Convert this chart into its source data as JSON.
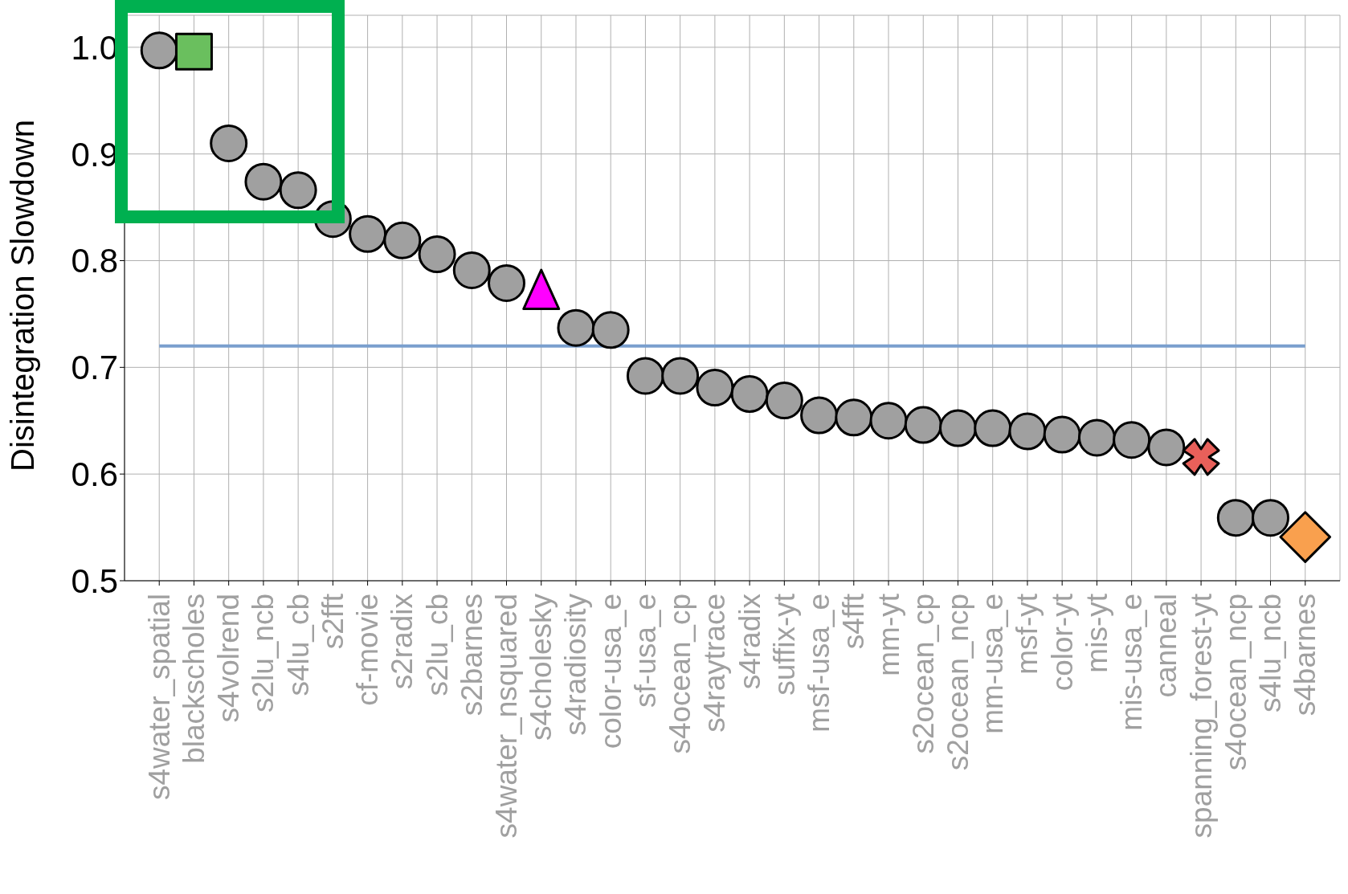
{
  "chart_data": {
    "type": "scatter",
    "ylabel": "Disintegration Slowdown",
    "categories": [
      "s4water_spatial",
      "blackscholes",
      "s4volrend",
      "s2lu_ncb",
      "s4lu_cb",
      "s2fft",
      "cf-movie",
      "s2radix",
      "s2lu_cb",
      "s2barnes",
      "s4water_nsquared",
      "s4cholesky",
      "s4radiosity",
      "color-usa_e",
      "sf-usa_e",
      "s4ocean_cp",
      "s4raytrace",
      "s4radix",
      "suffix-yt",
      "msf-usa_e",
      "s4fft",
      "mm-yt",
      "s2ocean_cp",
      "s2ocean_ncp",
      "mm-usa_e",
      "msf-yt",
      "color-yt",
      "mis-yt",
      "mis-usa_e",
      "canneal",
      "spanning_forest-yt",
      "s4ocean_ncp",
      "s4lu_ncb",
      "s4barnes"
    ],
    "series": [
      {
        "color": "#a0a0a0",
        "marker": "circle",
        "values": [
          0.997,
          null,
          0.91,
          0.874,
          0.866,
          0.839,
          0.825,
          0.819,
          0.806,
          0.791,
          0.779,
          null,
          0.737,
          0.735,
          0.692,
          0.692,
          0.681,
          0.675,
          0.669,
          0.655,
          0.653,
          0.65,
          0.646,
          0.643,
          0.643,
          0.64,
          0.637,
          0.634,
          0.632,
          0.625,
          null,
          0.559,
          0.559,
          null
        ]
      },
      {
        "color": "#6abf5e",
        "marker": "square",
        "x": [
          "blackscholes"
        ],
        "values": [
          0.996
        ]
      },
      {
        "color": "#ff00ff",
        "marker": "triangle",
        "x": [
          "s4cholesky"
        ],
        "values": [
          0.773
        ]
      },
      {
        "color": "#e8605a",
        "marker": "cross",
        "x": [
          "spanning_forest-yt"
        ],
        "values": [
          0.616
        ]
      },
      {
        "color": "#f9a04e",
        "marker": "diamond",
        "x": [
          "s4barnes"
        ],
        "values": [
          0.541
        ]
      }
    ],
    "ylim": [
      0.5,
      1.03
    ],
    "yticks": [
      0.5,
      0.6,
      0.7,
      0.8,
      0.9,
      {
        "value": 1,
        "label": "1.0"
      }
    ],
    "grid": true,
    "legend": false,
    "ref_lines": [
      {
        "axis": "y",
        "value": 0.72,
        "color": "#7a9fce"
      }
    ]
  }
}
